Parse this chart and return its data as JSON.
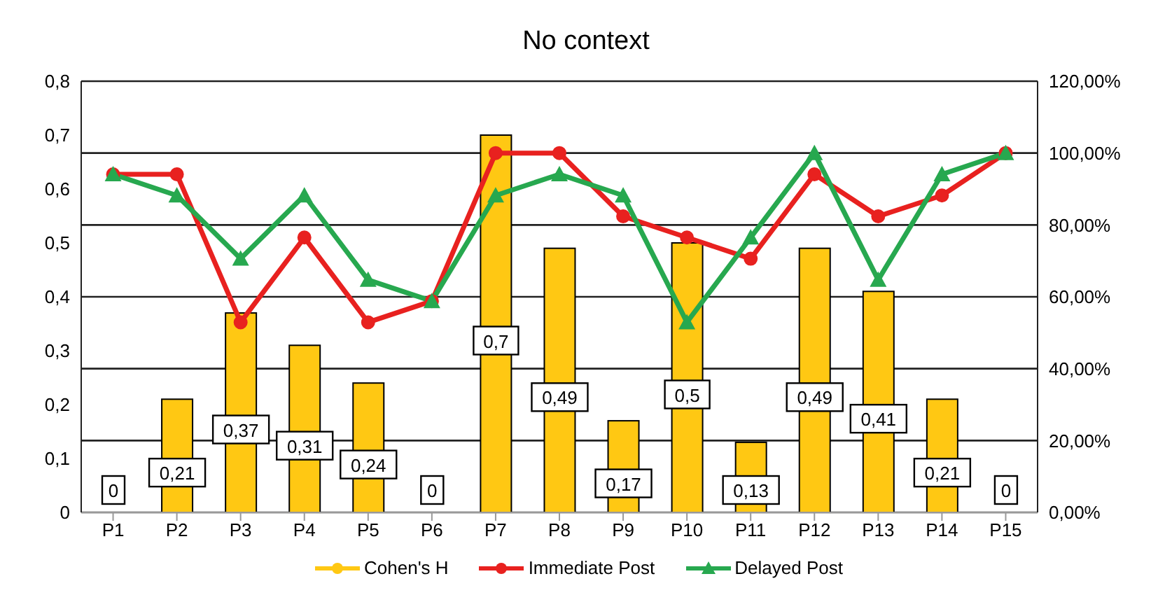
{
  "chart_data": {
    "type": "bar",
    "title": "No context",
    "categories": [
      "P1",
      "P2",
      "P3",
      "P4",
      "P5",
      "P6",
      "P7",
      "P8",
      "P9",
      "P10",
      "P11",
      "P12",
      "P13",
      "P14",
      "P15"
    ],
    "series": [
      {
        "name": "Cohen's H",
        "color": "#ffc813",
        "values": [
          0,
          0.21,
          0.37,
          0.31,
          0.24,
          0,
          0.7,
          0.49,
          0.17,
          0.5,
          0.13,
          0.49,
          0.41,
          0.21,
          0
        ],
        "value_labels": [
          "0",
          "0,21",
          "0,37",
          "0,31",
          "0,24",
          "0",
          "0,7",
          "0,49",
          "0,17",
          "0,5",
          "0,13",
          "0,49",
          "0,41",
          "0,21",
          "0"
        ]
      },
      {
        "name": "Immediate Post",
        "type": "line",
        "axis": "y2",
        "marker": "circle",
        "color": "#e8211f",
        "values": [
          94.1,
          94.1,
          52.9,
          76.5,
          52.9,
          58.8,
          100,
          100,
          82.4,
          76.5,
          70.6,
          94.1,
          82.4,
          88.2,
          100
        ]
      },
      {
        "name": "Delayed Post",
        "type": "line",
        "axis": "y2",
        "marker": "triangle",
        "color": "#27a84f",
        "values": [
          94.1,
          88.2,
          70.6,
          88.2,
          64.7,
          58.8,
          88.2,
          94.1,
          88.2,
          52.9,
          76.5,
          100,
          64.7,
          94.1,
          100
        ]
      }
    ],
    "ylim": [
      0,
      0.8
    ],
    "yticks": [
      {
        "value": 0,
        "label": "0"
      },
      {
        "value": 0.1,
        "label": "0,1"
      },
      {
        "value": 0.2,
        "label": "0,2"
      },
      {
        "value": 0.3,
        "label": "0,3"
      },
      {
        "value": 0.4,
        "label": "0,4"
      },
      {
        "value": 0.5,
        "label": "0,5"
      },
      {
        "value": 0.6,
        "label": "0,6"
      },
      {
        "value": 0.7,
        "label": "0,7"
      },
      {
        "value": 0.8,
        "label": "0,8"
      }
    ],
    "y2lim": [
      0,
      120
    ],
    "y2ticks": [
      {
        "value": 0,
        "label": "0,00%"
      },
      {
        "value": 20,
        "label": "20,00%"
      },
      {
        "value": 40,
        "label": "40,00%"
      },
      {
        "value": 60,
        "label": "60,00%"
      },
      {
        "value": 80,
        "label": "80,00%"
      },
      {
        "value": 100,
        "label": "100,00%"
      },
      {
        "value": 120,
        "label": "120,00%"
      }
    ],
    "grid": "y2",
    "legend": "bottom"
  }
}
